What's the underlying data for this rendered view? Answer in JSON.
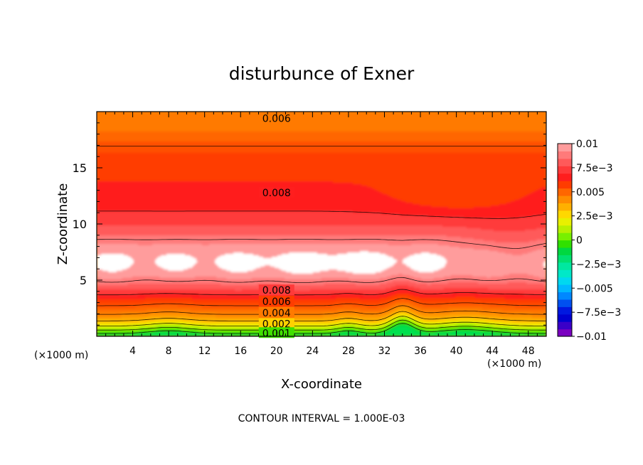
{
  "chart_data": {
    "type": "contour",
    "title": "disturbunce of Exner",
    "xlabel": "X-coordinate",
    "ylabel": "Z-coordinate",
    "x_unit": "(×1000 m)",
    "x_unit_right": "(×1000 m)",
    "footer": "CONTOUR INTERVAL = 1.000E-03",
    "xlim": [
      0,
      50
    ],
    "ylim": [
      0,
      20
    ],
    "x_ticks": [
      "4",
      "8",
      "12",
      "16",
      "20",
      "24",
      "28",
      "32",
      "36",
      "40",
      "44",
      "48"
    ],
    "x_tick_values": [
      4,
      8,
      12,
      16,
      20,
      24,
      28,
      32,
      36,
      40,
      44,
      48
    ],
    "y_ticks": [
      "5",
      "10",
      "15"
    ],
    "y_tick_values": [
      5,
      10,
      15
    ],
    "contour_interval": 0.001,
    "contour_labels": [
      {
        "text": "0.006",
        "x": 20,
        "y": 19.4
      },
      {
        "text": "0.008",
        "x": 20,
        "y": 12.8
      },
      {
        "text": "0.008",
        "x": 20,
        "y": 4.1
      },
      {
        "text": "0.006",
        "x": 20,
        "y": 3.1
      },
      {
        "text": "0.004",
        "x": 20,
        "y": 2.1
      },
      {
        "text": "0.002",
        "x": 20,
        "y": 1.1
      },
      {
        "text": "0.001",
        "x": 20,
        "y": 0.3
      }
    ],
    "colorbar": {
      "min": -0.01,
      "max": 0.01,
      "labels": [
        "0.01",
        "7.5e−3",
        "0.005",
        "2.5e−3",
        "0",
        "−2.5e−3",
        "−0.005",
        "−7.5e−3",
        "−0.01"
      ],
      "label_values": [
        0.01,
        0.0075,
        0.005,
        0.0025,
        0,
        -0.0025,
        -0.005,
        -0.0075,
        -0.01
      ],
      "colors": [
        "#7a00c0",
        "#3a00c8",
        "#0000d0",
        "#0018e0",
        "#0050f0",
        "#0088ff",
        "#00b8ff",
        "#00d8f0",
        "#00e8c8",
        "#00e8a0",
        "#00e070",
        "#00d840",
        "#30e000",
        "#78f000",
        "#b8f000",
        "#e8f000",
        "#ffd800",
        "#ffb000",
        "#ff8c00",
        "#ff6600",
        "#ff3c00",
        "#ff1e1e",
        "#ff3a3a",
        "#ff5a5a",
        "#ff7a7a",
        "#ff9c9c"
      ]
    },
    "field_bands": [
      {
        "value_min": 0.0096,
        "color": "#ffffff"
      },
      {
        "value_min": 0.0092,
        "color": "#ff9c9c"
      },
      {
        "value_min": 0.0088,
        "color": "#ff7a7a"
      },
      {
        "value_min": 0.0084,
        "color": "#ff5a5a"
      },
      {
        "value_min": 0.008,
        "color": "#ff3a3a"
      },
      {
        "value_min": 0.0076,
        "color": "#ff1e1e"
      },
      {
        "value_min": 0.0072,
        "color": "#ff3c00"
      },
      {
        "value_min": 0.0068,
        "color": "#ff5000"
      },
      {
        "value_min": 0.0064,
        "color": "#ff6600"
      },
      {
        "value_min": 0.006,
        "color": "#ff7a00"
      },
      {
        "value_min": 0.0056,
        "color": "#ff8c00"
      },
      {
        "value_min": 0.0052,
        "color": "#ffa000"
      },
      {
        "value_min": 0.0048,
        "color": "#ffb400"
      },
      {
        "value_min": 0.0044,
        "color": "#ffd000"
      },
      {
        "value_min": 0.004,
        "color": "#f0e800"
      },
      {
        "value_min": 0.0036,
        "color": "#d8f000"
      },
      {
        "value_min": 0.0032,
        "color": "#b0f000"
      },
      {
        "value_min": 0.0028,
        "color": "#88ec00"
      },
      {
        "value_min": 0.0024,
        "color": "#60e400"
      },
      {
        "value_min": 0.002,
        "color": "#40e000"
      },
      {
        "value_min": 0.0016,
        "color": "#20d820"
      },
      {
        "value_min": 0.0012,
        "color": "#00d840"
      },
      {
        "value_min": -1,
        "color": "#00e050"
      }
    ]
  }
}
